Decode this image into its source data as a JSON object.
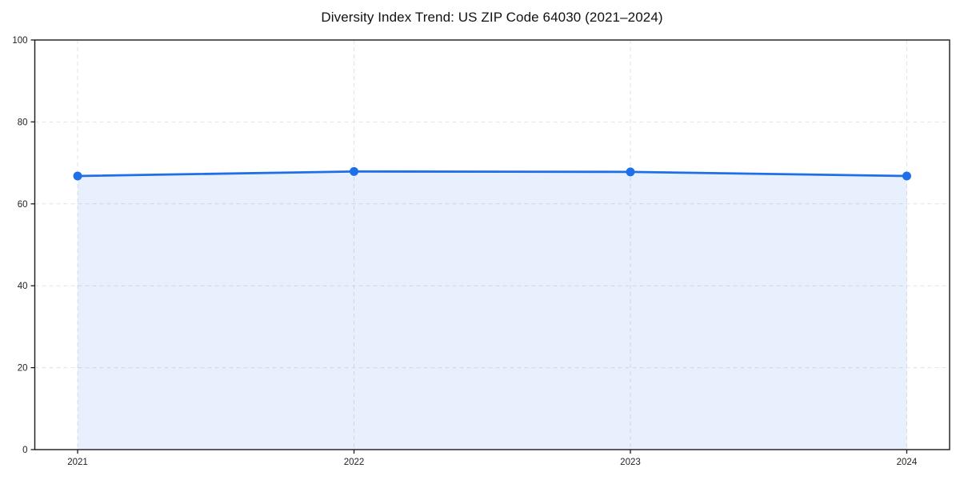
{
  "chart_data": {
    "type": "area",
    "title": "Diversity Index Trend: US ZIP Code 64030 (2021–2024)",
    "x": [
      2021,
      2022,
      2023,
      2024
    ],
    "series": [
      {
        "name": "Diversity Index",
        "values": [
          66.8,
          67.9,
          67.8,
          66.8
        ]
      }
    ],
    "xlabel": "",
    "ylabel": "",
    "xlim": [
      2020.845,
      2024.155
    ],
    "ylim": [
      0,
      100
    ],
    "yticks": [
      0,
      20,
      40,
      60,
      80,
      100
    ],
    "xticks": [
      2021,
      2022,
      2023,
      2024
    ],
    "grid": "dashed",
    "legend_position": "none",
    "line_color": "#1f6fe8",
    "marker_color": "#1f6fe8",
    "fill_color": "rgba(31,111,232,0.10)",
    "grid_color": "#e3e3e3",
    "spine_color": "#1a1a1a",
    "tick_color": "#1a1a1a",
    "tick_label_color": "#222222",
    "title_color": "#111111"
  }
}
